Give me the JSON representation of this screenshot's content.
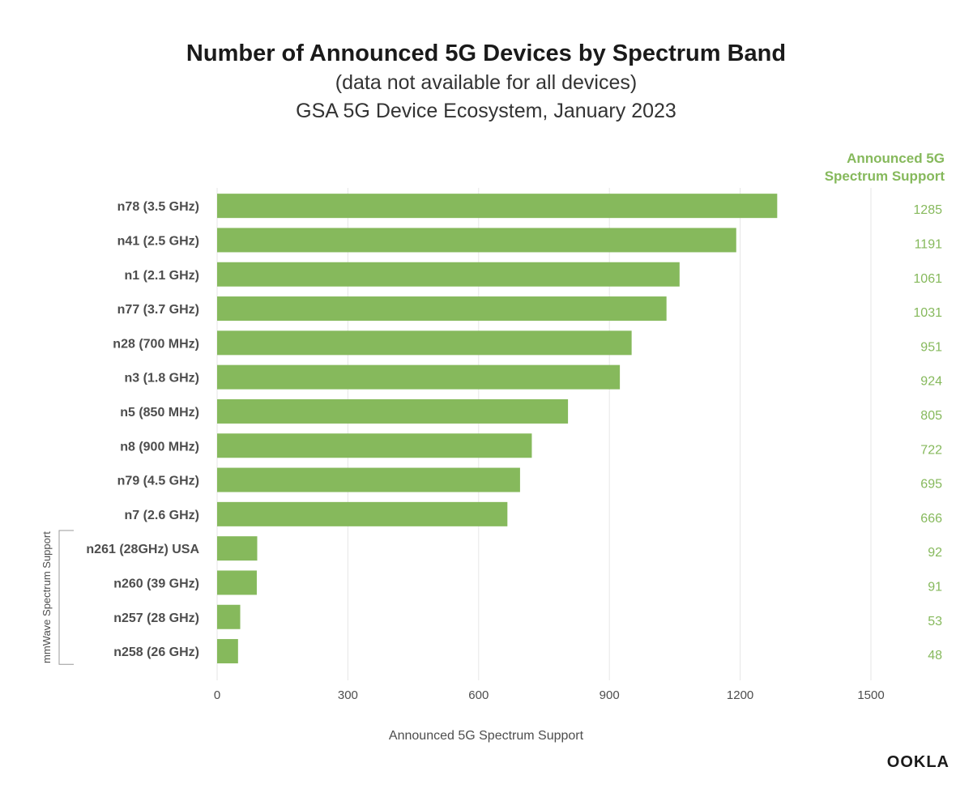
{
  "colors": {
    "bar": "#86b95c",
    "value_text": "#86b95c",
    "text": "#4d4d4d",
    "title": "#1a1a1a",
    "gridline": "#e6e6e6",
    "bracket": "#999999"
  },
  "logo": {
    "text": "OOKLA"
  },
  "chart_data": {
    "type": "bar",
    "orientation": "horizontal",
    "title": "Number of Announced 5G Devices by Spectrum Band",
    "subtitle_lines": [
      "(data not available for all devices)",
      "GSA 5G Device Ecosystem, January 2023"
    ],
    "value_column_header": [
      "Announced 5G",
      "Spectrum Support"
    ],
    "xlabel": "Announced 5G Spectrum Support",
    "ylabel": "",
    "xlim": [
      0,
      1500
    ],
    "xticks": [
      0,
      300,
      600,
      900,
      1200,
      1500
    ],
    "categories": [
      "n78 (3.5 GHz)",
      "n41 (2.5 GHz)",
      "n1 (2.1 GHz)",
      "n77 (3.7 GHz)",
      "n28 (700 MHz)",
      "n3 (1.8 GHz)",
      "n5 (850 MHz)",
      "n8 (900 MHz)",
      "n79 (4.5 GHz)",
      "n7 (2.6 GHz)",
      "n261 (28GHz) USA",
      "n260 (39 GHz)",
      "n257 (28 GHz)",
      "n258 (26 GHz)"
    ],
    "values": [
      1285,
      1191,
      1061,
      1031,
      951,
      924,
      805,
      722,
      695,
      666,
      92,
      91,
      53,
      48
    ],
    "group": {
      "label": "mmWave Spectrum Support",
      "categories": [
        "n261 (28GHz) USA",
        "n260 (39 GHz)",
        "n257 (28 GHz)",
        "n258 (26 GHz)"
      ]
    }
  }
}
